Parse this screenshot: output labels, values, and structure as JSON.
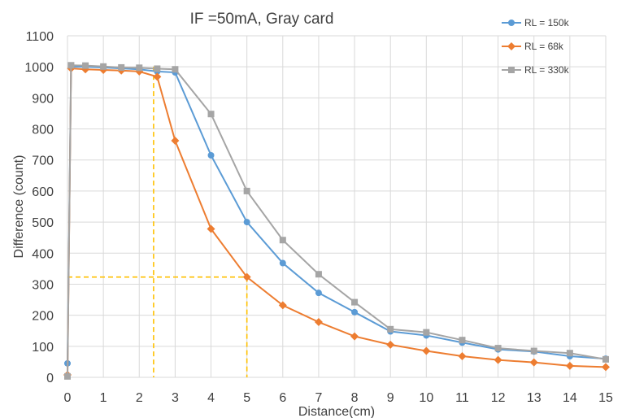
{
  "chart_data": {
    "type": "line",
    "title": "IF =50mA, Gray card",
    "xlabel": "Distance(cm)",
    "ylabel": "Difference (count)",
    "xlim": [
      0,
      15
    ],
    "ylim": [
      0,
      1100
    ],
    "xticks": [
      0,
      1,
      2,
      3,
      4,
      5,
      6,
      7,
      8,
      9,
      10,
      11,
      12,
      13,
      14,
      15
    ],
    "yticks": [
      0,
      100,
      200,
      300,
      400,
      500,
      600,
      700,
      800,
      900,
      1000,
      1100
    ],
    "grid": true,
    "legend_position": "top-right",
    "series": [
      {
        "name": "RL = 150k",
        "color": "#5b9bd5",
        "marker": "circle",
        "x": [
          0,
          0.1,
          0.5,
          1,
          1.5,
          2,
          2.5,
          3,
          4,
          5,
          6,
          7,
          8,
          9,
          10,
          11,
          12,
          13,
          14,
          15
        ],
        "y": [
          45,
          1000,
          1000,
          998,
          995,
          992,
          985,
          982,
          715,
          500,
          368,
          272,
          210,
          148,
          135,
          112,
          90,
          83,
          68,
          60
        ]
      },
      {
        "name": "RL = 68k",
        "color": "#ed7d31",
        "marker": "diamond",
        "x": [
          0,
          0.1,
          0.5,
          1,
          1.5,
          2,
          2.5,
          3,
          4,
          5,
          6,
          7,
          8,
          9,
          10,
          11,
          12,
          13,
          14,
          15
        ],
        "y": [
          8,
          995,
          992,
          990,
          988,
          985,
          968,
          762,
          478,
          323,
          232,
          178,
          132,
          105,
          85,
          68,
          56,
          48,
          37,
          33
        ]
      },
      {
        "name": "RL = 330k",
        "color": "#a5a5a5",
        "marker": "square",
        "x": [
          0,
          0.1,
          0.5,
          1,
          1.5,
          2,
          2.5,
          3,
          4,
          5,
          6,
          7,
          8,
          9,
          10,
          11,
          12,
          13,
          14,
          15
        ],
        "y": [
          3,
          1005,
          1004,
          1001,
          998,
          997,
          994,
          992,
          848,
          600,
          442,
          332,
          242,
          155,
          145,
          120,
          94,
          85,
          78,
          58
        ]
      }
    ],
    "guide_lines": {
      "color": "#ffc000",
      "lines": [
        {
          "x": [
            2.4,
            2.4
          ],
          "y": [
            1000,
            0
          ]
        },
        {
          "x": [
            0,
            5
          ],
          "y": [
            323,
            323
          ]
        },
        {
          "x": [
            5,
            5
          ],
          "y": [
            323,
            0
          ]
        }
      ]
    }
  }
}
